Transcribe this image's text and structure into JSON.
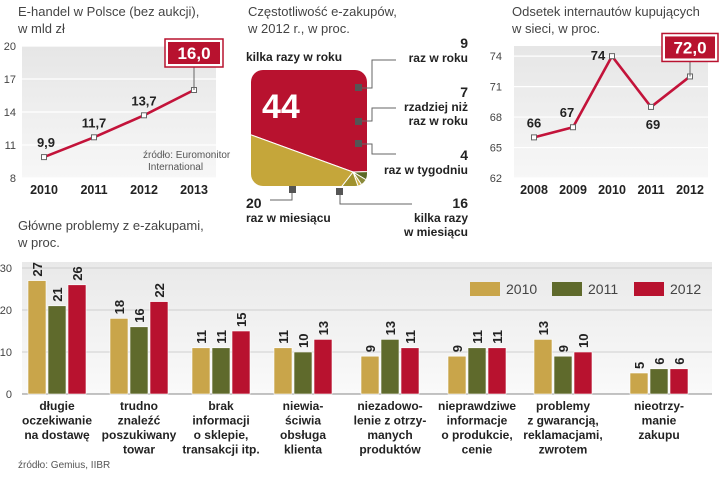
{
  "chart_data": [
    {
      "type": "line",
      "title": "E-handel w Polsce (bez aukcji),",
      "subtitle": "w mld zł",
      "categories": [
        "2010",
        "2011",
        "2012",
        "2013"
      ],
      "values": [
        9.9,
        11.7,
        13.7,
        16.0
      ],
      "value_labels": [
        "9,9",
        "11,7",
        "13,7",
        "16,0"
      ],
      "ylim": [
        8,
        20
      ],
      "yticks": [
        "8",
        "11",
        "14",
        "17",
        "20"
      ],
      "ytick_values": [
        8,
        11,
        14,
        17,
        20
      ],
      "source": [
        "źródło: Euromonitor",
        "International"
      ],
      "color": "#c3133a"
    },
    {
      "type": "pie",
      "title": "Częstotliwość e-zakupów,",
      "subtitle": "w 2012 r., w proc.",
      "slices": [
        {
          "label": "kilka razy w roku",
          "value": 44,
          "color": "#b8122f"
        },
        {
          "label": "raz w roku",
          "value": 9,
          "color": "#5b6826"
        },
        {
          "label_lines": [
            "rzadziej niż",
            "raz w roku"
          ],
          "value": 7,
          "color": "#8a8a3a"
        },
        {
          "label": "raz w tygodniu",
          "value": 4,
          "color": "#d2b24a"
        },
        {
          "label_lines": [
            "kilka razy",
            "w miesiącu"
          ],
          "value": 16,
          "color": "#a0922e"
        },
        {
          "label": "raz w miesiącu",
          "value": 20,
          "color": "#c5a63a"
        }
      ],
      "value_labels": [
        "44",
        "9",
        "7",
        "4",
        "16",
        "20"
      ]
    },
    {
      "type": "line",
      "title": "Odsetek internautów kupujących",
      "subtitle": "w sieci, w proc.",
      "categories": [
        "2008",
        "2009",
        "2010",
        "2011",
        "2012"
      ],
      "values": [
        66,
        67,
        74,
        69,
        72
      ],
      "value_labels": [
        "66",
        "67",
        "74",
        "69",
        "72,0"
      ],
      "ylim": [
        62,
        75
      ],
      "yticks": [
        "62",
        "65",
        "68",
        "71",
        "74"
      ],
      "ytick_values": [
        62,
        65,
        68,
        71,
        74
      ],
      "color": "#c3133a"
    },
    {
      "type": "bar",
      "title": "Główne problemy z e-zakupami,",
      "subtitle": "w proc.",
      "ylim": [
        0,
        30
      ],
      "yticks": [
        "0",
        "10",
        "20",
        "30"
      ],
      "ytick_values": [
        0,
        10,
        20,
        30
      ],
      "categories": [
        [
          "długie",
          "oczekiwanie",
          "na dostawę"
        ],
        [
          "trudno",
          "znaleźć",
          "poszukiwany",
          "towar"
        ],
        [
          "brak",
          "informacji",
          "o sklepie,",
          "transakcji itp."
        ],
        [
          "niewia-",
          "ściwia",
          "obsługa",
          "klienta"
        ],
        [
          "niezadowo-",
          "lenie z otrzy-",
          "manych",
          "produktów"
        ],
        [
          "nieprawdziwe",
          "informacje",
          "o produkcie,",
          "cenie"
        ],
        [
          "problemy",
          "z gwarancją,",
          "reklamacjami,",
          "zwrotem"
        ],
        [
          "nieotrzy-",
          "manie",
          "zakupu"
        ]
      ],
      "series": [
        {
          "name": "2010",
          "color": "#c9a54a",
          "values": [
            27,
            18,
            11,
            11,
            9,
            9,
            13,
            5
          ]
        },
        {
          "name": "2011",
          "color": "#5f6a2c",
          "values": [
            21,
            16,
            11,
            10,
            13,
            11,
            9,
            6
          ]
        },
        {
          "name": "2012",
          "color": "#b8122f",
          "values": [
            26,
            22,
            15,
            13,
            11,
            11,
            10,
            6
          ]
        }
      ],
      "source": "źródło: Gemius, IIBR"
    }
  ]
}
